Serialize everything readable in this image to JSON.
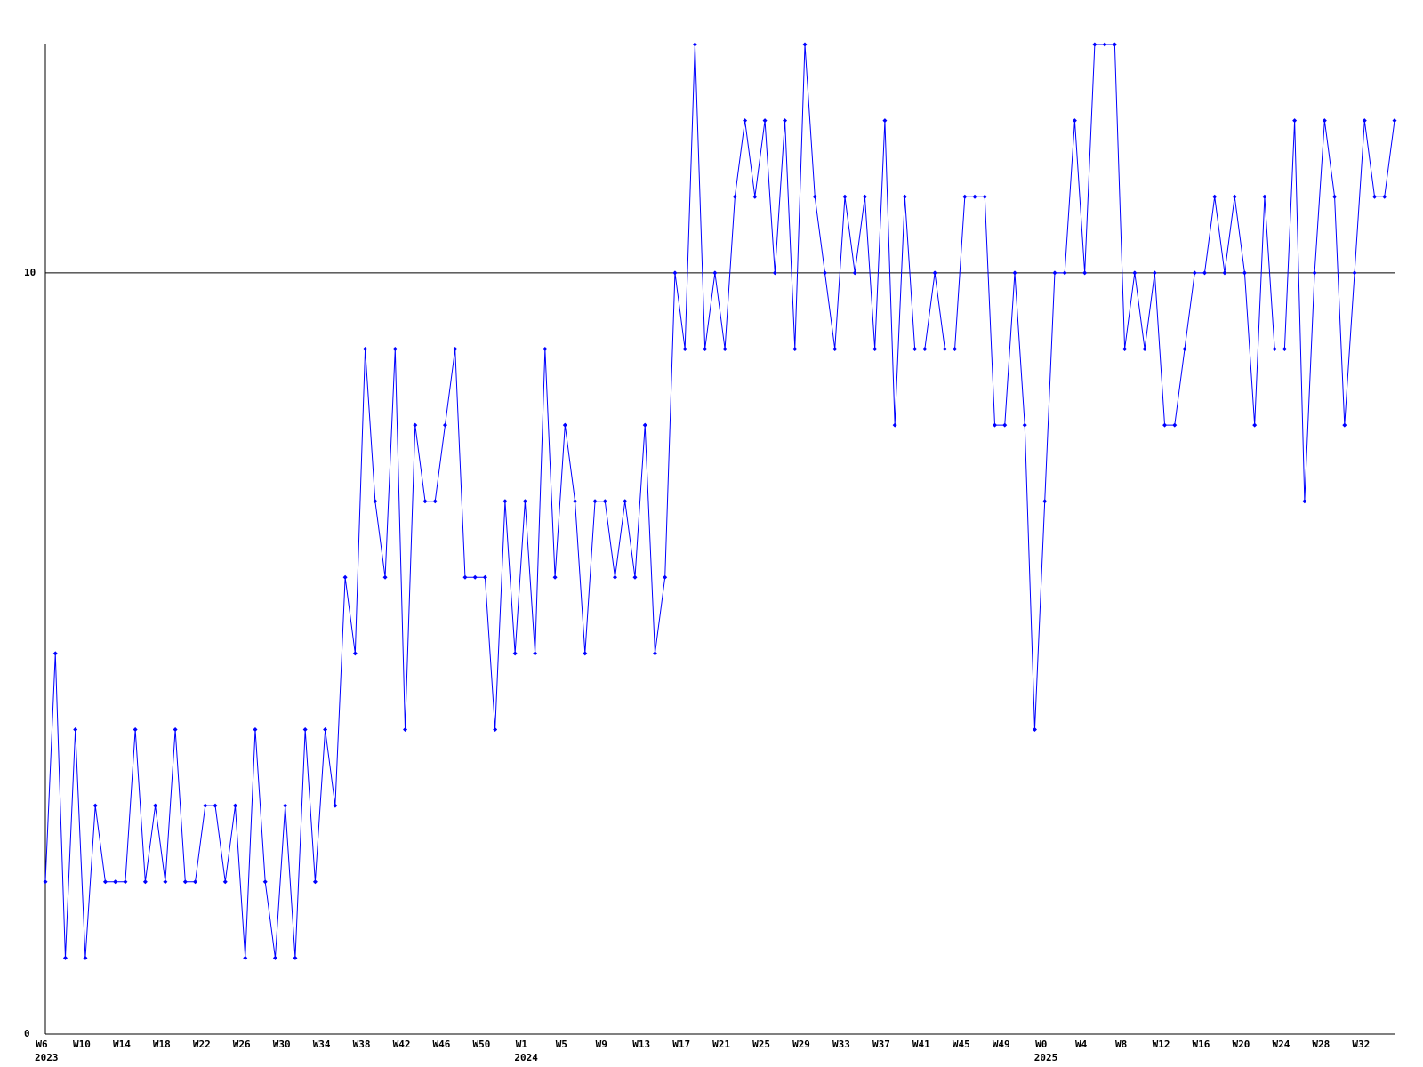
{
  "chart_data": {
    "type": "line",
    "categories": [
      "W6",
      null,
      null,
      null,
      "W10",
      null,
      null,
      null,
      "W14",
      null,
      null,
      null,
      "W18",
      null,
      null,
      null,
      "W22",
      null,
      null,
      null,
      "W26",
      null,
      null,
      null,
      "W30",
      null,
      null,
      null,
      "W34",
      null,
      null,
      null,
      "W38",
      null,
      null,
      null,
      "W42",
      null,
      null,
      null,
      "W46",
      null,
      null,
      null,
      "W50",
      null,
      null,
      null,
      "W1",
      null,
      null,
      null,
      "W5",
      null,
      null,
      null,
      "W9",
      null,
      null,
      null,
      "W13",
      null,
      null,
      null,
      "W17",
      null,
      null,
      null,
      "W21",
      null,
      null,
      null,
      "W25",
      null,
      null,
      null,
      "W29",
      null,
      null,
      null,
      "W33",
      null,
      null,
      null,
      "W37",
      null,
      null,
      null,
      "W41",
      null,
      null,
      null,
      "W45",
      null,
      null,
      null,
      "W49",
      null,
      null,
      null,
      "W0",
      null,
      null,
      null,
      "W4",
      null,
      null,
      null,
      "W8",
      null,
      null,
      null,
      "W12",
      null,
      null,
      null,
      "W16",
      null,
      null,
      null,
      "W20",
      null,
      null,
      null,
      "W24",
      null,
      null,
      null,
      "W28",
      null,
      null,
      null,
      "W32",
      null,
      null,
      null
    ],
    "years": [
      "2023",
      null,
      null,
      null,
      null,
      null,
      null,
      null,
      null,
      null,
      null,
      null,
      null,
      null,
      null,
      null,
      null,
      null,
      null,
      null,
      null,
      null,
      null,
      null,
      null,
      null,
      null,
      null,
      null,
      null,
      null,
      null,
      null,
      null,
      null,
      null,
      null,
      null,
      null,
      null,
      null,
      null,
      null,
      null,
      null,
      null,
      null,
      null,
      "2024",
      null,
      null,
      null,
      null,
      null,
      null,
      null,
      null,
      null,
      null,
      null,
      null,
      null,
      null,
      null,
      null,
      null,
      null,
      null,
      null,
      null,
      null,
      null,
      null,
      null,
      null,
      null,
      null,
      null,
      null,
      null,
      null,
      null,
      null,
      null,
      null,
      null,
      null,
      null,
      null,
      null,
      null,
      null,
      null,
      null,
      null,
      null,
      null,
      null,
      null,
      null,
      "2025",
      null,
      null,
      null,
      null,
      null,
      null,
      null,
      null,
      null,
      null,
      null,
      null,
      null,
      null,
      null,
      null,
      null,
      null,
      null,
      null,
      null,
      null,
      null,
      null,
      null,
      null,
      null,
      null,
      null,
      null,
      null,
      null,
      null,
      null,
      null
    ],
    "series": [
      {
        "color": "#0000ff",
        "values": [
          2,
          5,
          1,
          4,
          1,
          3,
          2,
          2,
          2,
          4,
          2,
          3,
          2,
          4,
          2,
          2,
          3,
          3,
          2,
          3,
          1,
          4,
          2,
          1,
          3,
          1,
          4,
          2,
          4,
          3,
          6,
          5,
          9,
          7,
          6,
          9,
          4,
          8,
          7,
          7,
          8,
          9,
          6,
          6,
          6,
          4,
          7,
          5,
          7,
          5,
          9,
          6,
          8,
          7,
          5,
          7,
          7,
          6,
          7,
          6,
          8,
          5,
          6,
          10,
          9,
          13,
          9,
          10,
          9,
          11,
          12,
          11,
          12,
          10,
          12,
          9,
          13,
          11,
          10,
          9,
          11,
          10,
          11,
          9,
          12,
          8,
          11,
          9,
          9,
          10,
          9,
          9,
          11,
          11,
          11,
          8,
          8,
          10,
          8,
          4,
          7,
          10,
          10,
          12,
          10,
          13,
          13,
          13,
          9,
          10,
          9,
          10,
          8,
          8,
          9,
          10,
          10,
          11,
          10,
          11,
          10,
          8,
          11,
          9,
          9,
          12,
          7,
          10,
          12,
          11,
          8,
          10,
          12,
          11,
          11,
          12
        ]
      }
    ],
    "ylim": [
      0,
      13
    ],
    "yticks": [
      0,
      10
    ],
    "grid": true
  }
}
